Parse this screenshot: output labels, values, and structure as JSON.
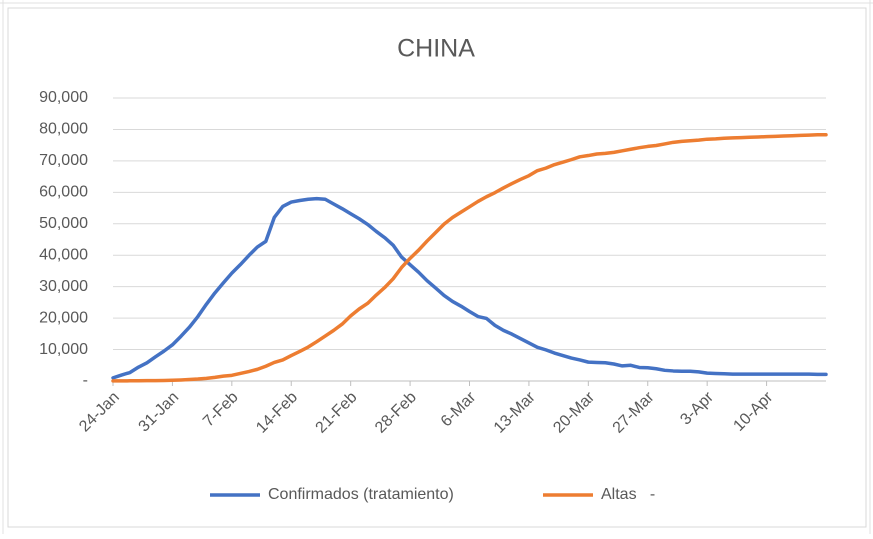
{
  "chart_data": {
    "type": "line",
    "title": "CHINA",
    "categories": [
      "24-Jan",
      null,
      null,
      null,
      null,
      null,
      null,
      "31-Jan",
      null,
      null,
      null,
      null,
      null,
      null,
      "7-Feb",
      null,
      null,
      null,
      null,
      null,
      null,
      "14-Feb",
      null,
      null,
      null,
      null,
      null,
      null,
      "21-Feb",
      null,
      null,
      null,
      null,
      null,
      null,
      "28-Feb",
      null,
      null,
      null,
      null,
      null,
      null,
      "6-Mar",
      null,
      null,
      null,
      null,
      null,
      null,
      "13-Mar",
      null,
      null,
      null,
      null,
      null,
      null,
      "20-Mar",
      null,
      null,
      null,
      null,
      null,
      null,
      "27-Mar",
      null,
      null,
      null,
      null,
      null,
      null,
      "3-Apr",
      null,
      null,
      null,
      null,
      null,
      null,
      "10-Apr",
      null,
      null,
      null,
      null,
      null,
      null,
      null
    ],
    "series": [
      {
        "name": "Confirmados (tratamiento)",
        "color": "#4472c4",
        "values": [
          1000,
          1900,
          2700,
          4400,
          5800,
          7700,
          9500,
          11500,
          14200,
          17100,
          20500,
          24400,
          28000,
          31200,
          34300,
          37000,
          39900,
          42600,
          44400,
          52000,
          55500,
          56900,
          57400,
          57800,
          58000,
          57800,
          56300,
          54800,
          53200,
          51600,
          49800,
          47600,
          45600,
          43200,
          39400,
          37000,
          34600,
          31900,
          29600,
          27200,
          25300,
          23800,
          22100,
          20500,
          19900,
          17700,
          16100,
          14900,
          13500,
          12100,
          10700,
          9900,
          8900,
          8100,
          7300,
          6700,
          6000,
          5900,
          5800,
          5400,
          4800,
          5000,
          4300,
          4200,
          3900,
          3400,
          3200,
          3100,
          3100,
          2900,
          2500,
          2400,
          2300,
          2200,
          2200,
          2200,
          2200,
          2200,
          2200,
          2200,
          2200,
          2200,
          2200,
          2100,
          2100
        ]
      },
      {
        "name": "Altas   -",
        "color": "#ed7d31",
        "values": [
          40,
          50,
          60,
          100,
          110,
          130,
          170,
          240,
          330,
          480,
          630,
          850,
          1150,
          1550,
          1800,
          2400,
          3000,
          3700,
          4700,
          5900,
          6700,
          8100,
          9400,
          10800,
          12500,
          14300,
          16100,
          18100,
          20700,
          22900,
          24700,
          27300,
          29700,
          32500,
          36100,
          39000,
          41600,
          44500,
          47200,
          49900,
          52000,
          53700,
          55400,
          57100,
          58600,
          59900,
          61400,
          62800,
          64100,
          65300,
          66900,
          67700,
          68800,
          69600,
          70400,
          71300,
          71700,
          72200,
          72400,
          72700,
          73200,
          73700,
          74200,
          74600,
          74900,
          75400,
          75900,
          76200,
          76400,
          76600,
          76900,
          77000,
          77200,
          77300,
          77400,
          77500,
          77600,
          77700,
          77800,
          77900,
          78000,
          78100,
          78200,
          78300,
          78300
        ]
      }
    ],
    "ylim": [
      0,
      90000
    ],
    "yticks": [
      {
        "value": 0,
        "label": "-"
      },
      {
        "value": 10000,
        "label": "10,000"
      },
      {
        "value": 20000,
        "label": "20,000"
      },
      {
        "value": 30000,
        "label": "30,000"
      },
      {
        "value": 40000,
        "label": "40,000"
      },
      {
        "value": 50000,
        "label": "50,000"
      },
      {
        "value": 60000,
        "label": "60,000"
      },
      {
        "value": 70000,
        "label": "70,000"
      },
      {
        "value": 80000,
        "label": "80,000"
      },
      {
        "value": 90000,
        "label": "90,000"
      }
    ],
    "grid": true,
    "legend": "bottom"
  }
}
